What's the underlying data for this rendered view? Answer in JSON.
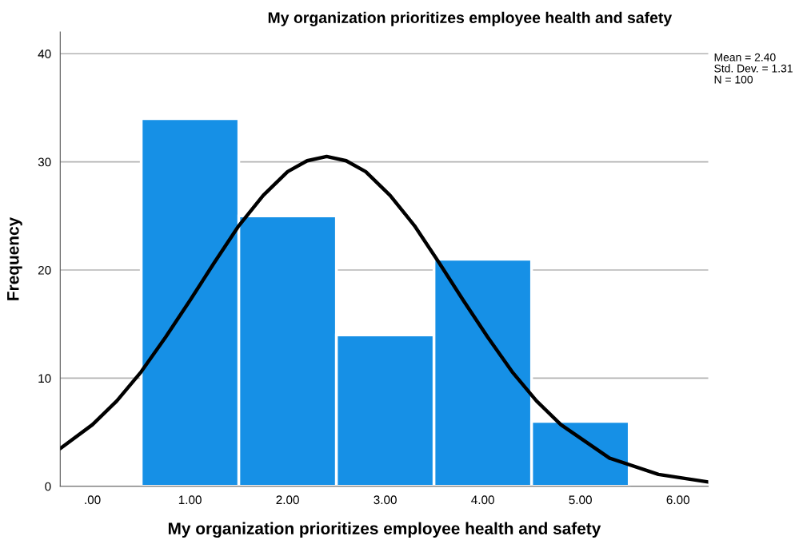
{
  "chart_data": {
    "type": "histogram",
    "title": "My organization prioritizes employee health and safety",
    "xlabel": "My organization prioritizes employee health and safety",
    "ylabel": "Frequency",
    "bins": [
      0.5,
      1.5,
      2.5,
      3.5,
      4.5,
      5.5
    ],
    "values": [
      34,
      25,
      14,
      21,
      6
    ],
    "color": "#1690e6",
    "series": [
      {
        "type": "line",
        "color": "#000000",
        "x": [
          -0.33,
          0,
          0.25,
          0.5,
          0.75,
          1.0,
          1.25,
          1.5,
          1.75,
          2.0,
          2.2,
          2.4,
          2.6,
          2.8,
          3.05,
          3.3,
          3.55,
          3.8,
          4.05,
          4.3,
          4.55,
          4.8,
          5.3,
          5.8,
          6.31
        ],
        "values": [
          3.5,
          5.7,
          7.9,
          10.6,
          13.8,
          17.2,
          20.7,
          24.1,
          26.9,
          29.1,
          30.1,
          30.5,
          30.1,
          29.1,
          26.9,
          24.1,
          20.7,
          17.2,
          13.8,
          10.6,
          7.9,
          5.7,
          2.6,
          1.1,
          0.4
        ]
      }
    ],
    "xlim": [
      -0.33,
      6.31
    ],
    "xticks": [
      {
        "value": 0,
        "label": ".00"
      },
      {
        "value": 1,
        "label": "1.00"
      },
      {
        "value": 2,
        "label": "2.00"
      },
      {
        "value": 3,
        "label": "3.00"
      },
      {
        "value": 4,
        "label": "4.00"
      },
      {
        "value": 5,
        "label": "5.00"
      },
      {
        "value": 6,
        "label": "6.00"
      }
    ],
    "ylim": [
      0,
      42
    ],
    "yticks": [
      0,
      10,
      20,
      30,
      40
    ],
    "grid": "y",
    "annotations": [
      "Mean = 2.40",
      "Std. Dev. = 1.31",
      "N = 100"
    ]
  }
}
